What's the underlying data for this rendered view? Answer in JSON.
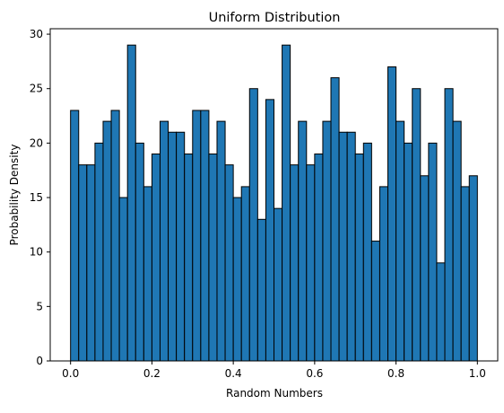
{
  "chart_data": {
    "type": "bar",
    "title": "Uniform Distribution",
    "xlabel": "Random Numbers",
    "ylabel": "Probability Density",
    "xlim": [
      -0.05,
      1.05
    ],
    "ylim": [
      0,
      30.5
    ],
    "xticks": [
      0.0,
      0.2,
      0.4,
      0.6,
      0.8,
      1.0
    ],
    "xtick_labels": [
      "0.0",
      "0.2",
      "0.4",
      "0.6",
      "0.8",
      "1.0"
    ],
    "yticks": [
      0,
      5,
      10,
      15,
      20,
      25,
      30
    ],
    "ytick_labels": [
      "0",
      "5",
      "10",
      "15",
      "20",
      "25",
      "30"
    ],
    "bins": {
      "start": 0.0,
      "end": 1.0,
      "count": 50
    },
    "values": [
      23,
      18,
      18,
      20,
      22,
      23,
      15,
      29,
      20,
      16,
      19,
      22,
      21,
      21,
      19,
      23,
      23,
      19,
      22,
      18,
      15,
      16,
      25,
      13,
      24,
      14,
      29,
      18,
      22,
      18,
      19,
      22,
      26,
      21,
      21,
      19,
      20,
      11,
      16,
      27,
      22,
      20,
      25,
      17,
      20,
      9,
      25,
      22,
      16,
      17
    ],
    "grid": false,
    "legend": "none",
    "colors": {
      "bar_fill": "#1f77b4",
      "bar_edge": "#000000",
      "axes": "#000000",
      "background": "#ffffff"
    }
  }
}
